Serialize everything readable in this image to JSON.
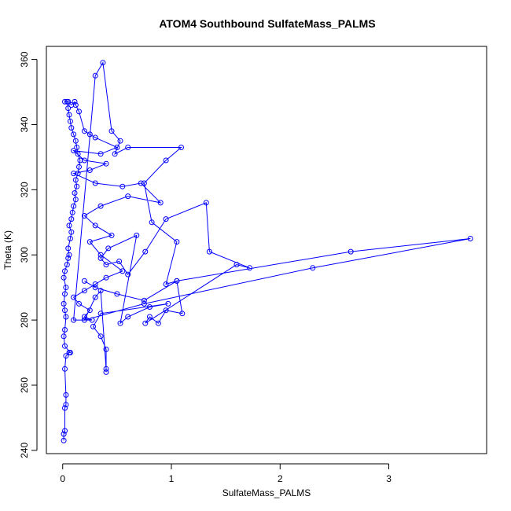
{
  "chart_data": {
    "type": "line",
    "title": "ATOM4 Southbound SulfateMass_PALMS",
    "xlabel": "SulfateMass_PALMS",
    "ylabel": "Theta (K)",
    "xlim": [
      -0.15,
      3.9
    ],
    "ylim": [
      239,
      364
    ],
    "x_ticks": [
      0,
      1,
      2,
      3
    ],
    "y_ticks": [
      240,
      260,
      280,
      300,
      320,
      340,
      360
    ],
    "grid": false,
    "legend": "none",
    "markers": "open-circle",
    "series_color": "#0000ff",
    "series": [
      {
        "points": [
          [
            0.01,
            243
          ],
          [
            0.01,
            245
          ],
          [
            0.02,
            246
          ],
          [
            0.02,
            253
          ],
          [
            0.03,
            254
          ],
          [
            0.03,
            257
          ],
          [
            0.02,
            265
          ],
          [
            0.03,
            269
          ],
          [
            0.06,
            270
          ],
          [
            0.07,
            270
          ],
          [
            0.02,
            272
          ],
          [
            0.01,
            275
          ],
          [
            0.02,
            277
          ],
          [
            0.03,
            281
          ],
          [
            0.02,
            283
          ],
          [
            0.01,
            285
          ],
          [
            0.02,
            288
          ],
          [
            0.03,
            290
          ],
          [
            0.01,
            293
          ],
          [
            0.02,
            295
          ],
          [
            0.04,
            297
          ],
          [
            0.05,
            299
          ],
          [
            0.06,
            300
          ],
          [
            0.05,
            302
          ],
          [
            0.07,
            305
          ],
          [
            0.08,
            307
          ],
          [
            0.06,
            309
          ],
          [
            0.08,
            311
          ],
          [
            0.09,
            313
          ],
          [
            0.1,
            315
          ],
          [
            0.12,
            317
          ],
          [
            0.11,
            319
          ],
          [
            0.13,
            321
          ],
          [
            0.12,
            323
          ],
          [
            0.14,
            325
          ],
          [
            0.15,
            327
          ],
          [
            0.16,
            329
          ],
          [
            0.14,
            331
          ],
          [
            0.13,
            333
          ],
          [
            0.12,
            335
          ],
          [
            0.1,
            337
          ],
          [
            0.08,
            339
          ],
          [
            0.07,
            341
          ],
          [
            0.06,
            343
          ],
          [
            0.05,
            345
          ],
          [
            0.04,
            347
          ],
          [
            0.02,
            347
          ],
          [
            0.05,
            347
          ],
          [
            0.08,
            346
          ],
          [
            0.11,
            347
          ],
          [
            0.12,
            346
          ],
          [
            0.15,
            344
          ],
          [
            0.2,
            338
          ],
          [
            0.25,
            337
          ],
          [
            0.3,
            336
          ],
          [
            0.5,
            333
          ],
          [
            0.35,
            331
          ],
          [
            0.1,
            332
          ],
          [
            0.2,
            329
          ],
          [
            0.4,
            328
          ],
          [
            0.25,
            326
          ],
          [
            0.1,
            325
          ],
          [
            0.3,
            322
          ],
          [
            0.55,
            321
          ],
          [
            0.72,
            322
          ],
          [
            0.9,
            316
          ],
          [
            0.6,
            318
          ],
          [
            0.35,
            315
          ],
          [
            0.2,
            312
          ],
          [
            0.3,
            309
          ],
          [
            0.45,
            306
          ],
          [
            0.25,
            304
          ],
          [
            0.35,
            300
          ],
          [
            0.55,
            295
          ],
          [
            0.4,
            293
          ],
          [
            0.3,
            291
          ],
          [
            0.2,
            289
          ],
          [
            0.1,
            287
          ],
          [
            0.15,
            285
          ],
          [
            0.25,
            283
          ],
          [
            0.2,
            281
          ],
          [
            0.27,
            280
          ],
          [
            0.1,
            280
          ],
          [
            0.3,
            355
          ],
          [
            0.37,
            359
          ],
          [
            0.45,
            338
          ],
          [
            0.53,
            335
          ],
          [
            0.48,
            331
          ],
          [
            0.6,
            333
          ],
          [
            1.09,
            333
          ],
          [
            0.95,
            329
          ],
          [
            0.75,
            322
          ],
          [
            0.82,
            310
          ],
          [
            1.05,
            304
          ],
          [
            0.95,
            291
          ],
          [
            1.05,
            292
          ],
          [
            1.1,
            282
          ],
          [
            0.95,
            283
          ],
          [
            0.88,
            279
          ],
          [
            0.8,
            281
          ],
          [
            0.76,
            279
          ],
          [
            1.6,
            297
          ],
          [
            1.72,
            296
          ],
          [
            1.35,
            301
          ],
          [
            1.32,
            316
          ],
          [
            0.95,
            311
          ],
          [
            0.76,
            301
          ],
          [
            0.6,
            294
          ],
          [
            0.52,
            298
          ],
          [
            0.4,
            297
          ],
          [
            0.35,
            299
          ],
          [
            0.42,
            302
          ],
          [
            0.68,
            306
          ],
          [
            0.53,
            279
          ],
          [
            0.6,
            281
          ],
          [
            0.8,
            284
          ],
          [
            0.97,
            285
          ],
          [
            0.35,
            282
          ],
          [
            0.28,
            278
          ],
          [
            0.35,
            275
          ],
          [
            0.4,
            271
          ],
          [
            0.4,
            264
          ],
          [
            0.4,
            265
          ],
          [
            0.35,
            289
          ],
          [
            0.3,
            287
          ],
          [
            0.2,
            280
          ],
          [
            0.75,
            285
          ],
          [
            2.3,
            296
          ],
          [
            3.75,
            305
          ],
          [
            2.65,
            301
          ],
          [
            1.05,
            292
          ],
          [
            0.75,
            286
          ],
          [
            0.5,
            288
          ],
          [
            0.3,
            290
          ],
          [
            0.2,
            292
          ]
        ]
      }
    ]
  }
}
